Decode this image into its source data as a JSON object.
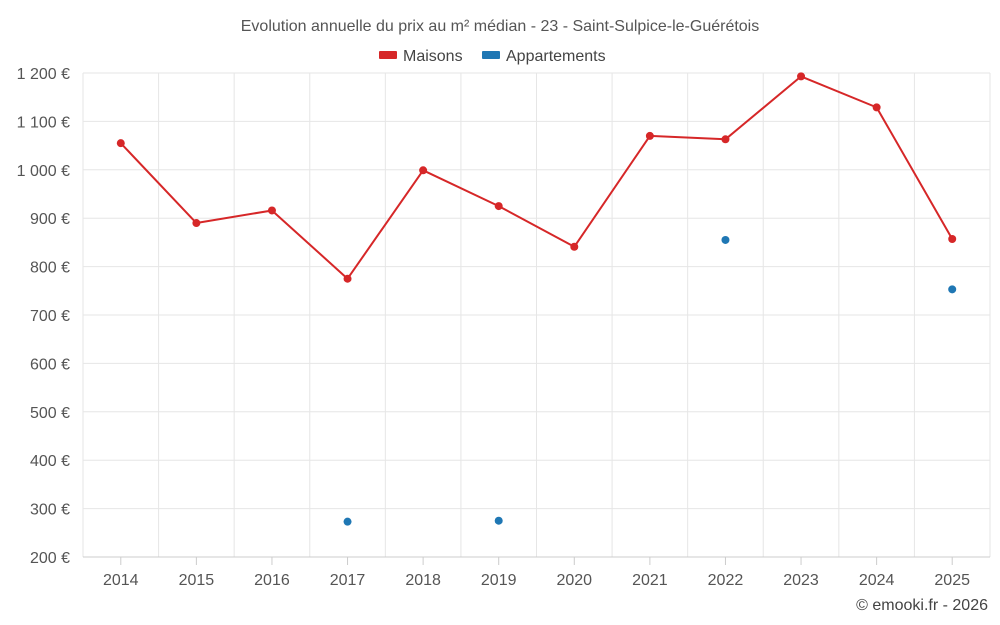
{
  "chart_data": {
    "type": "line",
    "title": "Evolution annuelle du prix au m² médian - 23 - Saint-Sulpice-le-Guérétois",
    "categories": [
      "2014",
      "2015",
      "2016",
      "2017",
      "2018",
      "2019",
      "2020",
      "2021",
      "2022",
      "2023",
      "2024",
      "2025"
    ],
    "ylim": [
      200,
      1200
    ],
    "yticks": [
      200,
      300,
      400,
      500,
      600,
      700,
      800,
      900,
      1000,
      1100,
      1200
    ],
    "ytick_labels": [
      "200 €",
      "300 €",
      "400 €",
      "500 €",
      "600 €",
      "700 €",
      "800 €",
      "900 €",
      "1 000 €",
      "1 100 €",
      "1 200 €"
    ],
    "series": [
      {
        "name": "Maisons",
        "color": "#d62728",
        "line": true,
        "values": [
          1055,
          890,
          916,
          775,
          999,
          925,
          841,
          1070,
          1063,
          1193,
          1129,
          857
        ]
      },
      {
        "name": "Appartements",
        "color": "#1f77b4",
        "line": false,
        "values": [
          null,
          null,
          null,
          273,
          null,
          275,
          null,
          null,
          855,
          null,
          null,
          753
        ]
      }
    ],
    "legend_position": "top-center",
    "grid": true,
    "credit": "© emooki.fr - 2026"
  }
}
